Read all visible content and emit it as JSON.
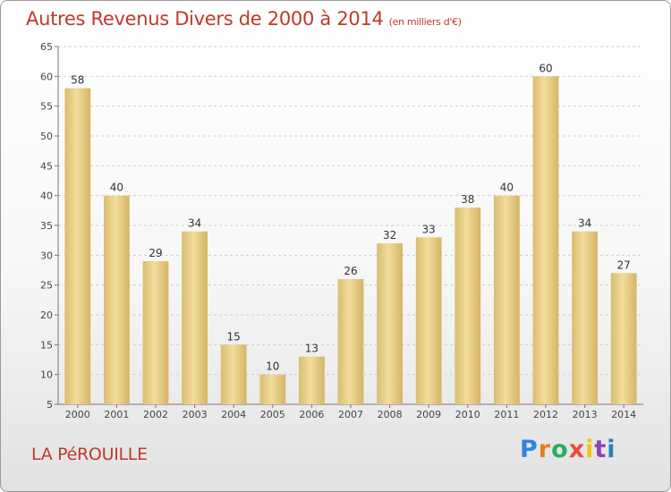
{
  "header": {
    "title": "Autres Revenus Divers de 2000 à 2014",
    "unit": "(en milliers d'€)"
  },
  "footer": {
    "commune": "LA PéROUILLE",
    "brand": "Proxiti",
    "brand_colors": [
      "#2e86de",
      "#e67e22",
      "#27ae60",
      "#e74c3c",
      "#f1c40f",
      "#8e44ad",
      "#2980b9"
    ]
  },
  "chart_data": {
    "type": "bar",
    "categories": [
      "2000",
      "2001",
      "2002",
      "2003",
      "2004",
      "2005",
      "2006",
      "2007",
      "2008",
      "2009",
      "2010",
      "2011",
      "2012",
      "2013",
      "2014"
    ],
    "values": [
      58,
      40,
      29,
      34,
      15,
      10,
      13,
      26,
      32,
      33,
      38,
      40,
      60,
      34,
      27
    ],
    "title": "Autres Revenus Divers de 2000 à 2014",
    "subtitle": "(en milliers d'€)",
    "ylim": [
      5,
      65
    ],
    "yticks": [
      5,
      10,
      15,
      20,
      25,
      30,
      35,
      40,
      45,
      50,
      55,
      60,
      65
    ],
    "grid": true,
    "bar_color": "#e8cc85"
  }
}
